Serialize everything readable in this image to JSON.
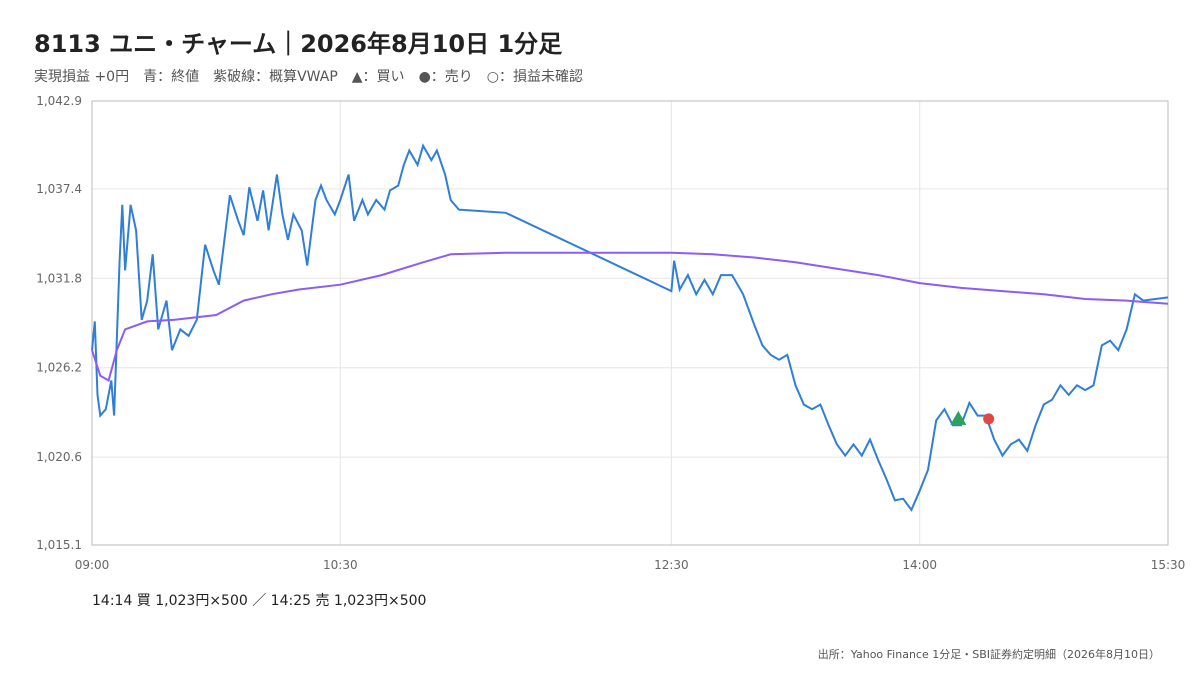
{
  "chart_data": {
    "type": "line",
    "title": "8113 ユニ・チャーム｜2026年8月10日 1分足",
    "subtitle": [
      "実現損益 +0円",
      "青：終値",
      "紫破線：概算VWAP",
      "▲：買い",
      "●：売り",
      "○：損益未確認"
    ],
    "ylim": [
      1015.1,
      1042.9
    ],
    "yticks": [
      {
        "value": 1015.1,
        "label": "1,015.1"
      },
      {
        "value": 1020.6,
        "label": "1,020.6"
      },
      {
        "value": 1026.2,
        "label": "1,026.2"
      },
      {
        "value": 1031.8,
        "label": "1,031.8"
      },
      {
        "value": 1037.4,
        "label": "1,037.4"
      },
      {
        "value": 1042.9,
        "label": "1,042.9"
      }
    ],
    "xlim": [
      "09:00",
      "15:30"
    ],
    "xticks": [
      "09:00",
      "10:30",
      "12:30",
      "14:00",
      "15:30"
    ],
    "grid": true,
    "series": [
      {
        "color": "#2f7ed8",
        "x": [
          "09:00",
          "09:01",
          "09:02",
          "09:03",
          "09:05",
          "09:07",
          "09:08",
          "09:10",
          "09:11",
          "09:12",
          "09:14",
          "09:16",
          "09:18",
          "09:20",
          "09:22",
          "09:24",
          "09:27",
          "09:29",
          "09:32",
          "09:35",
          "09:38",
          "09:41",
          "09:44",
          "09:46",
          "09:50",
          "09:53",
          "09:55",
          "09:57",
          "10:00",
          "10:02",
          "10:04",
          "10:07",
          "10:09",
          "10:11",
          "10:13",
          "10:16",
          "10:18",
          "10:21",
          "10:23",
          "10:25",
          "10:28",
          "10:30",
          "10:33",
          "10:35",
          "10:38",
          "10:40",
          "10:43",
          "10:46",
          "10:48",
          "10:51",
          "10:53",
          "10:55",
          "10:58",
          "11:00",
          "11:03",
          "11:05",
          "11:08",
          "11:10",
          "11:13",
          "11:30",
          "12:30",
          "12:31",
          "12:33",
          "12:36",
          "12:39",
          "12:42",
          "12:45",
          "12:48",
          "12:52",
          "12:56",
          "13:00",
          "13:03",
          "13:06",
          "13:09",
          "13:12",
          "13:15",
          "13:18",
          "13:21",
          "13:24",
          "13:27",
          "13:30",
          "13:33",
          "13:36",
          "13:39",
          "13:42",
          "13:45",
          "13:48",
          "13:51",
          "13:54",
          "13:57",
          "14:00",
          "14:03",
          "14:06",
          "14:09",
          "14:12",
          "14:15",
          "14:18",
          "14:21",
          "14:24",
          "14:27",
          "14:30",
          "14:33",
          "14:36",
          "14:39",
          "14:42",
          "14:45",
          "14:48",
          "14:51",
          "14:54",
          "14:57",
          "15:00",
          "15:03",
          "15:06",
          "15:09",
          "15:12",
          "15:15",
          "15:18",
          "15:21",
          "15:30"
        ],
        "values": [
          1027.3,
          1029.1,
          1024.5,
          1023.2,
          1023.6,
          1025.4,
          1023.2,
          1032.9,
          1036.4,
          1032.3,
          1036.4,
          1034.8,
          1029.2,
          1030.4,
          1033.3,
          1028.6,
          1030.4,
          1027.3,
          1028.6,
          1028.2,
          1029.2,
          1033.9,
          1032.3,
          1031.4,
          1037.0,
          1035.4,
          1034.5,
          1037.5,
          1035.4,
          1037.3,
          1034.8,
          1038.3,
          1035.8,
          1034.2,
          1035.8,
          1034.8,
          1032.6,
          1036.7,
          1037.6,
          1036.7,
          1035.8,
          1036.7,
          1038.3,
          1035.4,
          1036.7,
          1035.8,
          1036.7,
          1036.1,
          1037.3,
          1037.6,
          1038.9,
          1039.8,
          1038.9,
          1040.1,
          1039.2,
          1039.8,
          1038.3,
          1036.7,
          1036.1,
          1035.9,
          1031.0,
          1032.9,
          1031.1,
          1032.0,
          1030.8,
          1031.7,
          1030.8,
          1032.0,
          1032.0,
          1030.8,
          1028.9,
          1027.6,
          1027.0,
          1026.7,
          1027.0,
          1025.1,
          1023.9,
          1023.6,
          1023.9,
          1022.6,
          1021.4,
          1020.7,
          1021.4,
          1020.7,
          1021.7,
          1020.4,
          1019.2,
          1017.9,
          1018.0,
          1017.3,
          1018.5,
          1019.8,
          1022.9,
          1023.6,
          1022.6,
          1022.6,
          1024.0,
          1023.2,
          1023.2,
          1021.7,
          1020.7,
          1021.4,
          1021.7,
          1021.0,
          1022.6,
          1023.9,
          1024.2,
          1025.1,
          1024.5,
          1025.1,
          1024.8,
          1025.1,
          1027.6,
          1027.9,
          1027.3,
          1028.6,
          1030.8,
          1030.4,
          1030.6
        ]
      },
      {
        "color": "#8b5cf6",
        "x": [
          "09:00",
          "09:03",
          "09:06",
          "09:09",
          "09:12",
          "09:20",
          "09:30",
          "09:45",
          "09:55",
          "10:05",
          "10:15",
          "10:30",
          "10:45",
          "11:00",
          "11:10",
          "11:30",
          "12:30",
          "12:45",
          "13:00",
          "13:15",
          "13:30",
          "13:45",
          "14:00",
          "14:15",
          "14:30",
          "14:45",
          "15:00",
          "15:15",
          "15:30"
        ],
        "values": [
          1027.3,
          1025.7,
          1025.4,
          1027.3,
          1028.6,
          1029.1,
          1029.2,
          1029.5,
          1030.4,
          1030.8,
          1031.1,
          1031.4,
          1032.0,
          1032.8,
          1033.3,
          1033.4,
          1033.4,
          1033.3,
          1033.1,
          1032.8,
          1032.4,
          1032.0,
          1031.5,
          1031.2,
          1031.0,
          1030.8,
          1030.5,
          1030.4,
          1030.2
        ]
      }
    ],
    "markers": [
      {
        "x": "14:14",
        "value": 1023,
        "shape": "triangle",
        "color": "#2ca25f"
      },
      {
        "x": "14:25",
        "value": 1023,
        "shape": "circle",
        "color": "#e04848"
      }
    ],
    "annotation": "14:14 買 1,023円×500 ／ 14:25 売 1,023円×500",
    "source": "出所：Yahoo Finance 1分足・SBI証券約定明細（2026年8月10日）"
  }
}
